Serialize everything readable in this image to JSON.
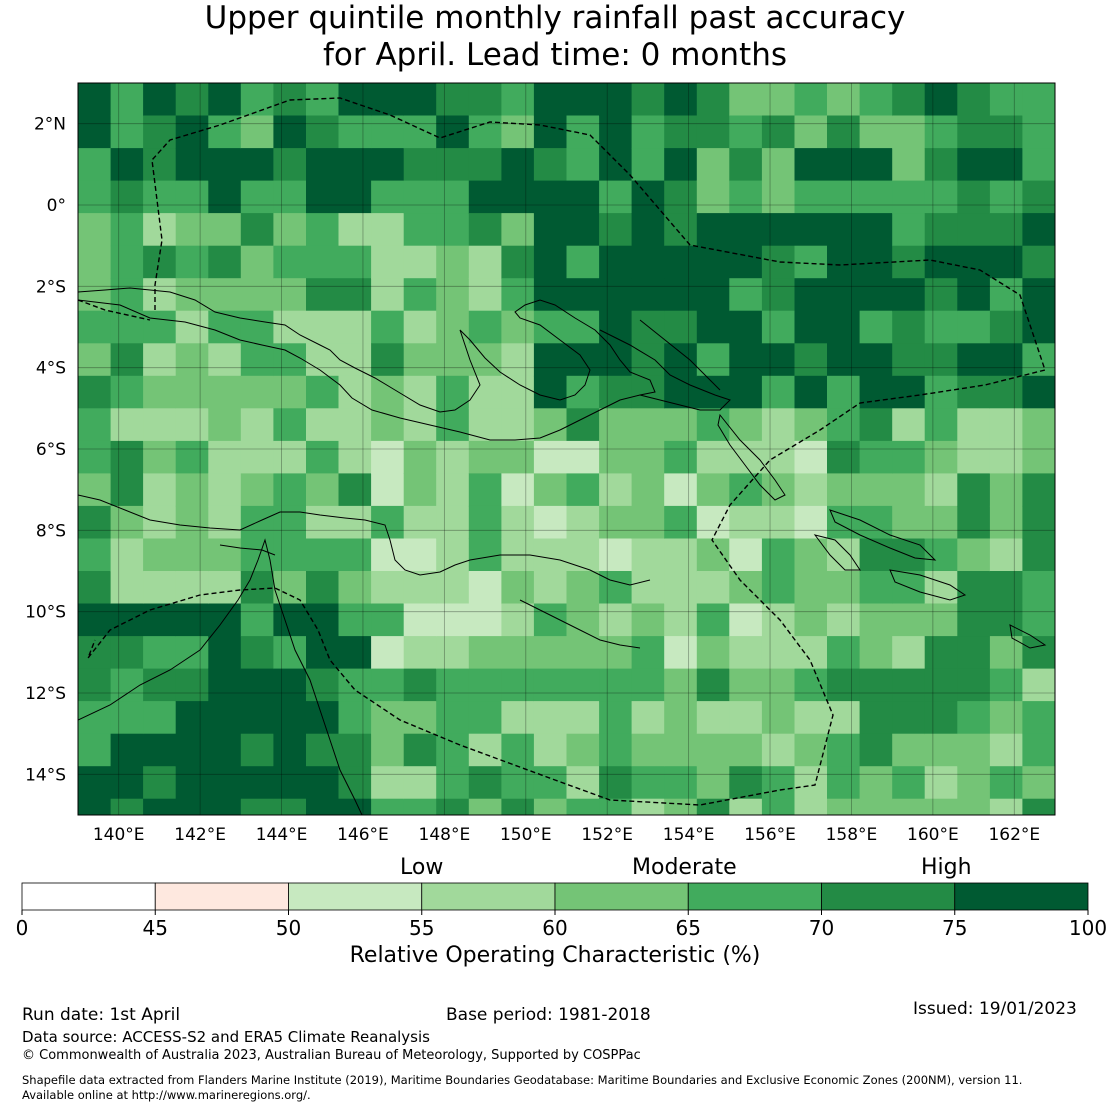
{
  "title": {
    "line1": "Upper quintile monthly rainfall past accuracy",
    "line2": "for April. Lead time: 0 months"
  },
  "map": {
    "lat_labels": [
      "2°N",
      "0°",
      "2°S",
      "4°S",
      "6°S",
      "8°S",
      "10°S",
      "12°S",
      "14°S"
    ],
    "lon_labels": [
      "140°E",
      "142°E",
      "144°E",
      "146°E",
      "148°E",
      "150°E",
      "152°E",
      "154°E",
      "156°E",
      "158°E",
      "160°E",
      "162°E"
    ],
    "lon_range": [
      139,
      163
    ],
    "lat_range": [
      -15,
      3
    ],
    "cell_size_deg": 0.8
  },
  "colorbar": {
    "title": "Relative Operating Characteristic (%)",
    "ticks": [
      "0",
      "45",
      "50",
      "55",
      "60",
      "65",
      "70",
      "75",
      "100"
    ],
    "colors": [
      "#ffffff",
      "#fee8df",
      "#c7e9c0",
      "#a1d99b",
      "#74c476",
      "#41ab5d",
      "#238b45",
      "#005a32"
    ],
    "categories": [
      "Low",
      "Moderate",
      "High"
    ]
  },
  "footer": {
    "run_date": "Run date: 1st April",
    "base_period": "Base period: 1981-2018",
    "issued": "Issued: 19/01/2023",
    "data_source": "Data source: ACCESS-S2 and ERA5 Climate Reanalysis",
    "copyright": "© Commonwealth of Australia 2023, Australian Bureau of Meteorology, Supported by COSPPac",
    "shapefile1": "Shapefile data extracted from Flanders Marine Institute (2019), Maritime Boundaries Geodatabase: Maritime Boundaries and Exclusive Economic Zones (200NM), version 11.",
    "shapefile2": "Available online at http://www.marineregions.org/."
  }
}
